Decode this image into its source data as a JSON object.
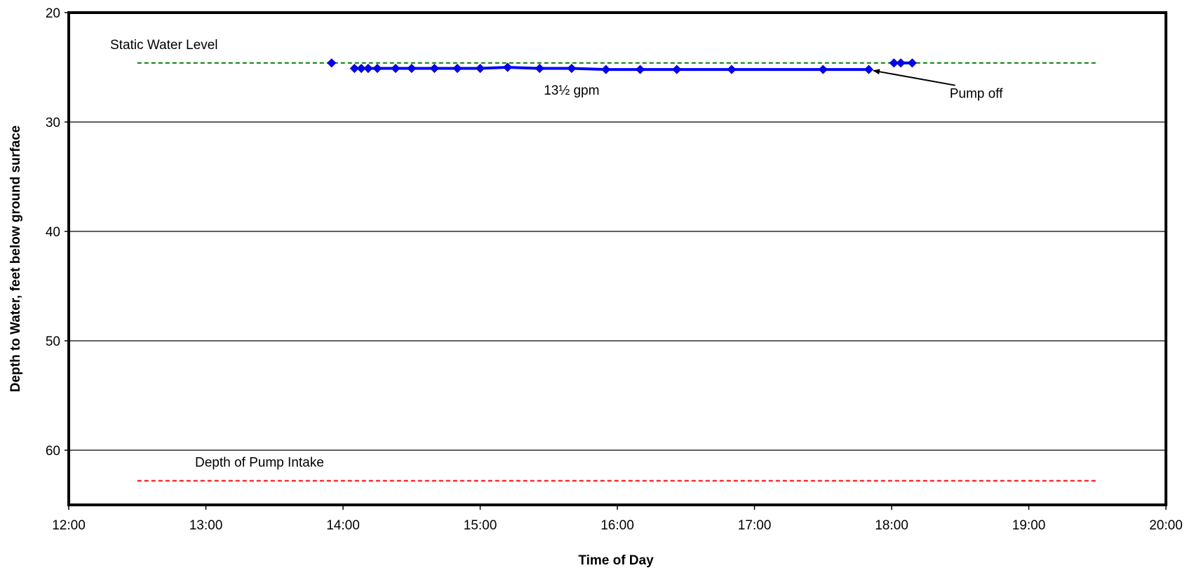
{
  "chart_data": {
    "type": "line",
    "xlabel": "Time of Day",
    "ylabel": "Depth to Water, feet below ground surface",
    "x_ticks": [
      "12:00",
      "13:00",
      "14:00",
      "15:00",
      "16:00",
      "17:00",
      "18:00",
      "19:00",
      "20:00"
    ],
    "y_ticks": [
      20,
      30,
      40,
      50,
      60
    ],
    "xlim": [
      "12:00",
      "20:00"
    ],
    "ylim": [
      20,
      65
    ],
    "y_inverted": true,
    "grid": {
      "horizontal": true,
      "vertical": false
    },
    "series": [
      {
        "color": "#0000ff",
        "marker": "diamond",
        "segments": [
          [
            {
              "x": "13:55",
              "y": 24.6
            }
          ],
          [
            {
              "x": "14:05",
              "y": 25.1
            },
            {
              "x": "14:08",
              "y": 25.1
            },
            {
              "x": "14:11",
              "y": 25.1
            },
            {
              "x": "14:15",
              "y": 25.1
            },
            {
              "x": "14:23",
              "y": 25.1
            },
            {
              "x": "14:30",
              "y": 25.1
            },
            {
              "x": "14:40",
              "y": 25.1
            },
            {
              "x": "14:50",
              "y": 25.1
            },
            {
              "x": "15:00",
              "y": 25.1
            },
            {
              "x": "15:12",
              "y": 25.0
            },
            {
              "x": "15:26",
              "y": 25.1
            },
            {
              "x": "15:40",
              "y": 25.1
            },
            {
              "x": "15:55",
              "y": 25.2
            },
            {
              "x": "16:10",
              "y": 25.2
            },
            {
              "x": "16:26",
              "y": 25.2
            },
            {
              "x": "16:50",
              "y": 25.2
            },
            {
              "x": "17:30",
              "y": 25.2
            },
            {
              "x": "17:50",
              "y": 25.2
            }
          ],
          [
            {
              "x": "18:01",
              "y": 24.6
            },
            {
              "x": "18:04",
              "y": 24.6
            },
            {
              "x": "18:09",
              "y": 24.6
            }
          ]
        ]
      }
    ],
    "reference_lines": [
      {
        "label": "Static Water Level",
        "y": 24.6,
        "x_from": "12:30",
        "x_to": "19:30",
        "color": "#008000",
        "style": "dashed"
      },
      {
        "label": "Depth of Pump Intake",
        "y": 62.8,
        "x_from": "12:30",
        "x_to": "19:30",
        "color": "#ff0000",
        "style": "dashed"
      }
    ],
    "annotations": [
      {
        "text": "13½ gpm",
        "x": "15:40",
        "y": 27.5
      },
      {
        "text": "Pump off",
        "x": "18:37",
        "y": 27.8,
        "arrow_to": {
          "x": "17:52",
          "y": 25.3
        }
      }
    ]
  }
}
